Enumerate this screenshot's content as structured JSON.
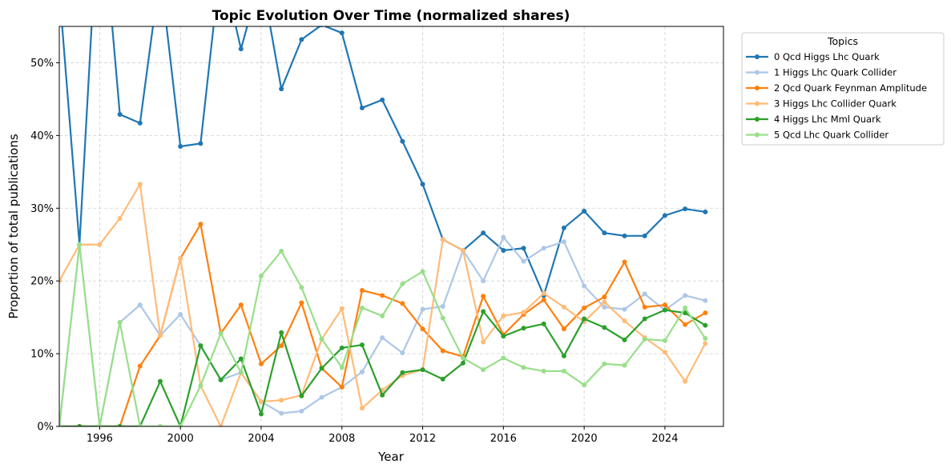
{
  "chart_data": {
    "type": "line",
    "title": "Topic Evolution Over Time (normalized shares)",
    "xlabel": "Year",
    "ylabel": "Proportion of total publications",
    "xlim": [
      1994,
      2026.9
    ],
    "ylim": [
      0,
      0.55
    ],
    "x_ticks": [
      1996,
      2000,
      2004,
      2008,
      2012,
      2016,
      2020,
      2024
    ],
    "x_tick_labels": [
      "1996",
      "2000",
      "2004",
      "2008",
      "2012",
      "2016",
      "2020",
      "2024"
    ],
    "y_ticks": [
      0,
      0.1,
      0.2,
      0.3,
      0.4,
      0.5
    ],
    "y_tick_labels": [
      "0%",
      "10%",
      "20%",
      "30%",
      "40%",
      "50%"
    ],
    "grid": true,
    "legend_title": "Topics",
    "legend_position": "outside-top-right",
    "x": [
      1994,
      1995,
      1996,
      1997,
      1998,
      1999,
      2000,
      2001,
      2002,
      2003,
      2004,
      2005,
      2006,
      2007,
      2008,
      2009,
      2010,
      2011,
      2012,
      2013,
      2014,
      2015,
      2016,
      2017,
      2018,
      2019,
      2020,
      2021,
      2022,
      2023,
      2024,
      2025,
      2026
    ],
    "series": [
      {
        "name": "0 Qcd Higgs Lhc Quark",
        "color": "#1f77b4",
        "values": [
          0.6,
          0.25,
          0.75,
          0.429,
          0.417,
          0.625,
          0.385,
          0.389,
          0.64,
          0.519,
          0.62,
          0.464,
          0.532,
          0.552,
          0.541,
          0.438,
          0.449,
          0.392,
          0.333,
          0.257,
          0.242,
          0.266,
          0.242,
          0.245,
          0.18,
          0.273,
          0.296,
          0.266,
          0.262,
          0.262,
          0.29,
          0.299,
          0.295
        ]
      },
      {
        "name": "1 Higgs Lhc Quark Collider",
        "color": "#aec7e8",
        "values": [
          0,
          0.25,
          0,
          0.143,
          0.167,
          0.125,
          0.154,
          0.111,
          0.064,
          0.074,
          0.034,
          0.018,
          0.021,
          0.04,
          0.054,
          0.075,
          0.122,
          0.101,
          0.161,
          0.165,
          0.242,
          0.2,
          0.26,
          0.227,
          0.245,
          0.254,
          0.193,
          0.164,
          0.161,
          0.182,
          0.16,
          0.18,
          0.173
        ]
      },
      {
        "name": "2 Qcd Quark Feynman Amplitude",
        "color": "#ff7f0e",
        "values": [
          0,
          0,
          0,
          0,
          0.083,
          0.125,
          0.231,
          0.278,
          0.128,
          0.167,
          0.086,
          0.111,
          0.17,
          0.08,
          0.054,
          0.187,
          0.18,
          0.169,
          0.134,
          0.104,
          0.096,
          0.179,
          0.126,
          0.154,
          0.174,
          0.134,
          0.163,
          0.178,
          0.226,
          0.164,
          0.167,
          0.14,
          0.156
        ]
      },
      {
        "name": "3 Higgs Lhc Collider Quark",
        "color": "#ffbb78",
        "values": [
          0.2,
          0.25,
          0.25,
          0.286,
          0.333,
          0.125,
          0.231,
          0.056,
          0,
          0.074,
          0.034,
          0.036,
          0.043,
          0.12,
          0.162,
          0.025,
          0.05,
          0.07,
          0.078,
          0.257,
          0.242,
          0.116,
          0.152,
          0.157,
          0.183,
          0.164,
          0.144,
          0.171,
          0.145,
          0.122,
          0.102,
          0.062,
          0.114
        ]
      },
      {
        "name": "4 Higgs Lhc Mml Quark",
        "color": "#2ca02c",
        "values": [
          0,
          0,
          0,
          0,
          0,
          0.062,
          0,
          0.111,
          0.064,
          0.093,
          0.017,
          0.129,
          0.042,
          0.08,
          0.108,
          0.112,
          0.043,
          0.074,
          0.078,
          0.065,
          0.087,
          0.158,
          0.124,
          0.135,
          0.141,
          0.097,
          0.148,
          0.136,
          0.119,
          0.148,
          0.16,
          0.156,
          0.139
        ]
      },
      {
        "name": "5 Qcd Lhc Quark Collider",
        "color": "#98df8a",
        "values": [
          0,
          0.25,
          0,
          0.143,
          0,
          0,
          0,
          0.056,
          0.128,
          0.074,
          0.207,
          0.241,
          0.191,
          0.12,
          0.081,
          0.163,
          0.152,
          0.196,
          0.213,
          0.149,
          0.094,
          0.078,
          0.094,
          0.081,
          0.076,
          0.076,
          0.057,
          0.086,
          0.084,
          0.12,
          0.118,
          0.163,
          0.121
        ]
      }
    ]
  }
}
